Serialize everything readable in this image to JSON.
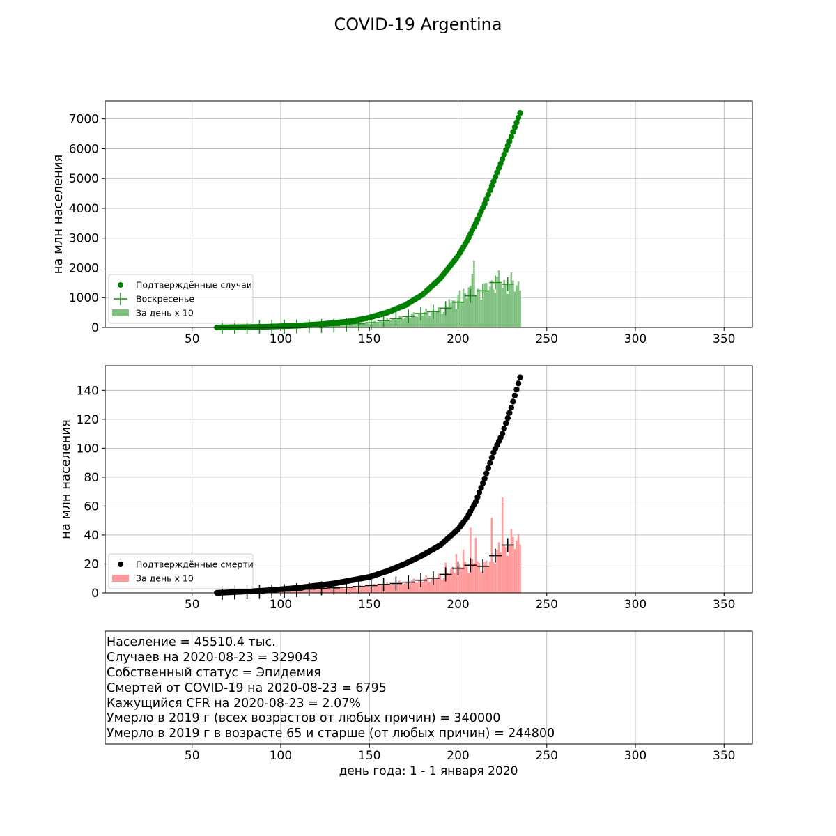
{
  "chart_data": [
    {
      "type": "scatter",
      "panel": "cases",
      "suptitle": "COVID-19 Argentina",
      "ylabel": "на млн населения",
      "xlim": [
        1,
        366
      ],
      "ylim": [
        0,
        7600
      ],
      "xticks": [
        50,
        100,
        150,
        200,
        250,
        300,
        350
      ],
      "yticks": [
        0,
        1000,
        2000,
        3000,
        4000,
        5000,
        6000,
        7000
      ],
      "grid": true,
      "legend_position": "lower-left",
      "legend": [
        "Подтверждённые случаи",
        "Воскресенье",
        "За день х 10"
      ],
      "colors": {
        "points": "#008000",
        "sunday": "#228b22",
        "bars": "#80c080"
      },
      "cumulative_anchors": {
        "x": [
          64,
          90,
          110,
          125,
          140,
          150,
          160,
          170,
          180,
          190,
          200,
          205,
          210,
          215,
          220,
          225,
          230,
          235
        ],
        "y": [
          0,
          20,
          60,
          120,
          210,
          330,
          500,
          740,
          1100,
          1650,
          2400,
          2900,
          3500,
          4150,
          4900,
          5650,
          6400,
          7200
        ]
      },
      "daily_x10_anchors": {
        "x": [
          64,
          100,
          130,
          150,
          160,
          170,
          180,
          190,
          200,
          210,
          215,
          222,
          228,
          235
        ],
        "y": [
          0,
          20,
          60,
          150,
          250,
          340,
          480,
          560,
          850,
          1150,
          1250,
          1550,
          1450,
          1450
        ]
      },
      "daily_spikes": [
        [
          209,
          2250
        ],
        [
          208,
          1800
        ],
        [
          207,
          1400
        ],
        [
          206,
          1350
        ],
        [
          203,
          1300
        ],
        [
          201,
          1250
        ],
        [
          198,
          900
        ],
        [
          195,
          950
        ]
      ],
      "sunday_x": [
        67,
        74,
        81,
        88,
        95,
        102,
        109,
        116,
        123,
        130,
        137,
        144,
        151,
        158,
        165,
        172,
        179,
        186,
        193,
        200,
        207,
        214,
        221,
        228
      ]
    },
    {
      "type": "scatter",
      "panel": "deaths",
      "ylabel": "на млн населения",
      "xlim": [
        1,
        366
      ],
      "ylim": [
        0,
        157
      ],
      "xticks": [
        50,
        100,
        150,
        200,
        250,
        300,
        350
      ],
      "yticks": [
        0,
        20,
        40,
        60,
        80,
        100,
        120,
        140
      ],
      "grid": true,
      "legend_position": "lower-left",
      "legend": [
        "Подтверждённые смерти",
        "За день х 10"
      ],
      "colors": {
        "points": "#000000",
        "sunday": "#000000",
        "bars": "#ff9999"
      },
      "cumulative_anchors": {
        "x": [
          64,
          90,
          110,
          130,
          150,
          160,
          170,
          180,
          190,
          200,
          205,
          210,
          215,
          220,
          225,
          230,
          235
        ],
        "y": [
          0,
          1.5,
          3.5,
          6.5,
          11,
          15,
          20,
          26,
          33,
          44,
          52,
          63,
          79,
          97,
          110,
          128,
          149
        ]
      },
      "daily_x10_anchors": {
        "x": [
          64,
          100,
          120,
          140,
          150,
          160,
          170,
          180,
          190,
          200,
          210,
          215,
          222,
          228,
          235
        ],
        "y": [
          0,
          1,
          3,
          4,
          5,
          6,
          7,
          9,
          11,
          17,
          20,
          18,
          27,
          33,
          39
        ]
      },
      "daily_spikes": [
        [
          225,
          66
        ],
        [
          219,
          52
        ],
        [
          210,
          38
        ],
        [
          207,
          45
        ],
        [
          203,
          30
        ],
        [
          199,
          27
        ],
        [
          193,
          21
        ]
      ],
      "sunday_x": [
        67,
        74,
        81,
        88,
        95,
        102,
        109,
        116,
        123,
        130,
        137,
        144,
        151,
        158,
        165,
        172,
        179,
        186,
        193,
        200,
        207,
        214,
        221,
        228
      ]
    }
  ],
  "info_panel": {
    "lines": [
      "Население = 45510.4 тыс.",
      "Случаев на 2020-08-23 = 329043",
      "Собственный статус = Эпидемия",
      "Смертей от COVID-19 на 2020-08-23 = 6795",
      "Кажущийся CFR на 2020-08-23 = 2.07%",
      "Умерло в 2019 г (всех возрастов от любых причин) = 340000",
      "Умерло в 2019 г в возрасте 65 и старше (от любых причин) = 244800"
    ],
    "xlabel": "день года: 1 - 1 января 2020",
    "xticks": [
      50,
      100,
      150,
      200,
      250,
      300,
      350
    ]
  }
}
